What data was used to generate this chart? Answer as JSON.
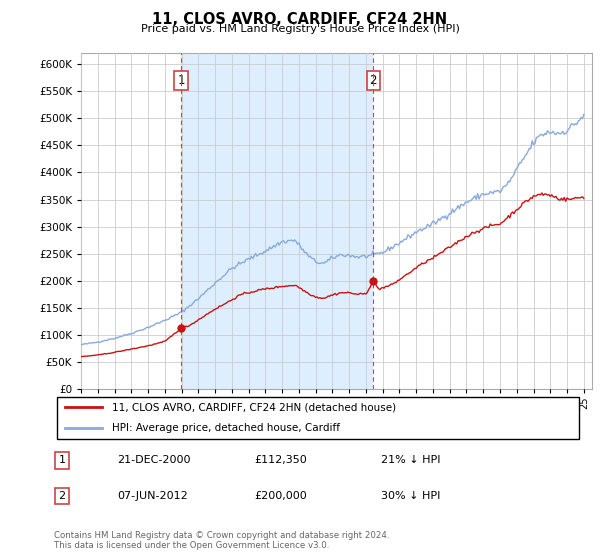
{
  "title": "11, CLOS AVRO, CARDIFF, CF24 2HN",
  "subtitle": "Price paid vs. HM Land Registry's House Price Index (HPI)",
  "ylim": [
    0,
    620000
  ],
  "yticks": [
    0,
    50000,
    100000,
    150000,
    200000,
    250000,
    300000,
    350000,
    400000,
    450000,
    500000,
    550000,
    600000
  ],
  "ytick_labels": [
    "£0",
    "£50K",
    "£100K",
    "£150K",
    "£200K",
    "£250K",
    "£300K",
    "£350K",
    "£400K",
    "£450K",
    "£500K",
    "£550K",
    "£600K"
  ],
  "hpi_color": "#88aadd",
  "price_color": "#cc1111",
  "vline_color": "#cc4444",
  "shade_color": "#ddeeff",
  "grid_color": "#cccccc",
  "legend_label_price": "11, CLOS AVRO, CARDIFF, CF24 2HN (detached house)",
  "legend_label_hpi": "HPI: Average price, detached house, Cardiff",
  "annotation1_date": "21-DEC-2000",
  "annotation1_price": "£112,350",
  "annotation1_note": "21% ↓ HPI",
  "annotation2_date": "07-JUN-2012",
  "annotation2_price": "£200,000",
  "annotation2_note": "30% ↓ HPI",
  "footer": "Contains HM Land Registry data © Crown copyright and database right 2024.\nThis data is licensed under the Open Government Licence v3.0.",
  "sale1_year": 2000.97,
  "sale1_price": 112350,
  "sale2_year": 2012.44,
  "sale2_price": 200000
}
